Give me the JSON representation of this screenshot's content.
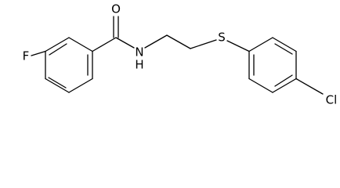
{
  "atoms": {
    "oxygen": "O",
    "fluorine": "F",
    "nitrogen": "N",
    "hydrogen": "H",
    "sulfur": "S",
    "chlorine": "Cl"
  }
}
